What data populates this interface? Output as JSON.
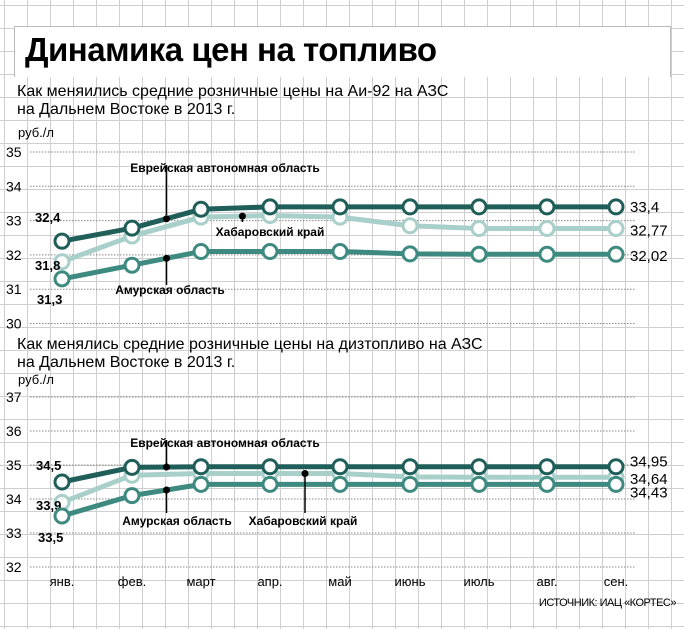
{
  "title": "Динамика цен на топливо",
  "source": "ИСТОЧНИК: ИАЦ «КОРТЕС»",
  "colors": {
    "evr": "#1f5e59",
    "khab": "#a9cfca",
    "amur": "#3e8a80"
  },
  "chart_data": [
    {
      "type": "line",
      "title": "Как меняились средние розничные цены на Аи-92 на АЗС",
      "title_line2": "на Дальнем Востоке в 2013 г.",
      "ylabel": "руб./л",
      "ylim": [
        30,
        35
      ],
      "yticks": [
        "30",
        "31",
        "32",
        "33",
        "34",
        "35"
      ],
      "categories": [
        "янв.",
        "фев.",
        "март",
        "апр.",
        "май",
        "июнь",
        "июль",
        "авг.",
        "сен."
      ],
      "series": [
        {
          "name": "Еврейская автономная область",
          "key": "evr",
          "values": [
            32.4,
            32.78,
            33.33,
            33.4,
            33.4,
            33.4,
            33.4,
            33.4,
            33.4
          ],
          "start_label": "32,4",
          "end_label": "33,4"
        },
        {
          "name": "Хабаровский край",
          "key": "khab",
          "values": [
            31.8,
            32.55,
            33.1,
            33.15,
            33.1,
            32.85,
            32.77,
            32.77,
            32.77
          ],
          "start_label": "31,8",
          "end_label": "32,77"
        },
        {
          "name": "Амурская область",
          "key": "amur",
          "values": [
            31.3,
            31.7,
            32.1,
            32.1,
            32.1,
            32.03,
            32.02,
            32.02,
            32.02
          ],
          "start_label": "31,3",
          "end_label": "32,02"
        }
      ]
    },
    {
      "type": "line",
      "title": "Как менялись средние розничные цены на дизтопливо на АЗС",
      "title_line2": "на Дальнем Востоке в 2013 г.",
      "ylabel": "руб./л",
      "ylim": [
        32,
        37
      ],
      "yticks": [
        "32",
        "33",
        "34",
        "35",
        "36",
        "37"
      ],
      "categories": [
        "янв.",
        "фев.",
        "март",
        "апр.",
        "май",
        "июнь",
        "июль",
        "авг.",
        "сен."
      ],
      "series": [
        {
          "name": "Еврейская автономная область",
          "key": "evr",
          "values": [
            34.5,
            34.93,
            34.95,
            34.95,
            34.95,
            34.95,
            34.95,
            34.95,
            34.95
          ],
          "start_label": "34,5",
          "end_label": "34,95"
        },
        {
          "name": "Хабаровский край",
          "key": "khab",
          "values": [
            33.9,
            34.7,
            34.75,
            34.75,
            34.75,
            34.65,
            34.64,
            34.64,
            34.64
          ],
          "start_label": "33,9",
          "end_label": "34,64"
        },
        {
          "name": "Амурская область",
          "key": "amur",
          "values": [
            33.5,
            34.1,
            34.43,
            34.43,
            34.43,
            34.43,
            34.43,
            34.43,
            34.43
          ],
          "start_label": "33,5",
          "end_label": "34,43"
        }
      ]
    }
  ]
}
